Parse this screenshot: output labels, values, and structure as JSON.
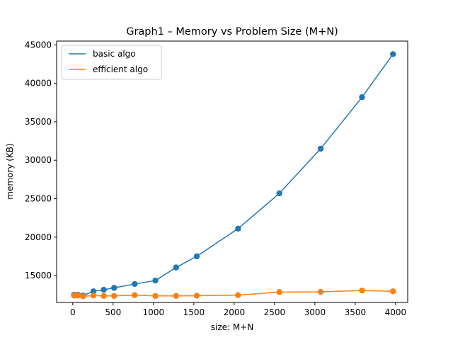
{
  "chart_data": {
    "type": "line",
    "title": "Graph1 – Memory vs Problem Size (M+N)",
    "xlabel": "size: M+N",
    "ylabel": "memory (KB)",
    "xlim": [
      -200,
      4150
    ],
    "ylim": [
      11500,
      45500
    ],
    "xticks": [
      0,
      500,
      1000,
      1500,
      2000,
      2500,
      3000,
      3500,
      4000
    ],
    "yticks": [
      15000,
      20000,
      25000,
      30000,
      35000,
      40000,
      45000
    ],
    "grid": false,
    "legend": "top-left",
    "series": [
      {
        "name": "basic algo",
        "color": "#1f77b4",
        "x": [
          16,
          64,
          128,
          256,
          384,
          512,
          768,
          1024,
          1280,
          1536,
          2048,
          2560,
          3072,
          3584,
          3968
        ],
        "y": [
          12500,
          12500,
          12400,
          12950,
          13150,
          13400,
          13900,
          14350,
          16050,
          17500,
          21100,
          25700,
          31500,
          38200,
          43800
        ]
      },
      {
        "name": "efficient algo",
        "color": "#ff7f0e",
        "x": [
          16,
          64,
          128,
          256,
          384,
          512,
          768,
          1024,
          1280,
          1536,
          2048,
          2560,
          3072,
          3584,
          3968
        ],
        "y": [
          12400,
          12400,
          12300,
          12400,
          12350,
          12350,
          12450,
          12350,
          12350,
          12380,
          12450,
          12850,
          12880,
          13050,
          12950
        ]
      }
    ]
  }
}
